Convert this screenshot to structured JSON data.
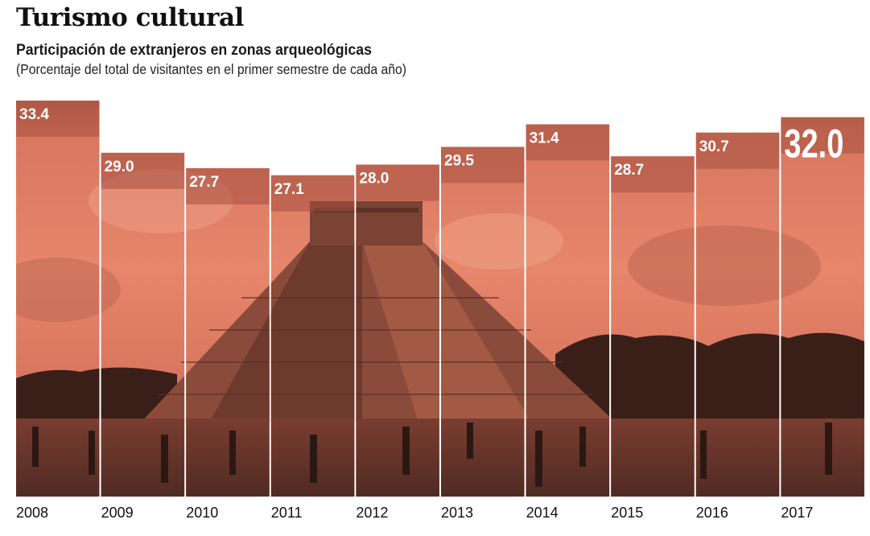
{
  "header": {
    "title": "Turismo cultural",
    "subtitle": "Participación de extranjeros en zonas arqueológicas",
    "note": "(Porcentaje del total de visitantes en el primer semestre de cada año)"
  },
  "colors": {
    "sky": "#e3826b",
    "label_band": "#a4513f",
    "ground": "#5a2e24",
    "label_text": "#ffffff"
  },
  "chart_data": {
    "type": "bar",
    "title": "Turismo cultural",
    "categories": [
      "2008",
      "2009",
      "2010",
      "2011",
      "2012",
      "2013",
      "2014",
      "2015",
      "2016",
      "2017"
    ],
    "values": [
      33.4,
      29.0,
      27.7,
      27.1,
      28.0,
      29.5,
      31.4,
      28.7,
      30.7,
      32.0
    ],
    "value_labels": [
      "33.4",
      "29.0",
      "27.7",
      "27.1",
      "28.0",
      "29.5",
      "31.4",
      "28.7",
      "30.7",
      "32.0"
    ],
    "highlight": "2017",
    "ylim": [
      0,
      33.4
    ],
    "grid": false,
    "background_image": "pyramid-photo"
  }
}
